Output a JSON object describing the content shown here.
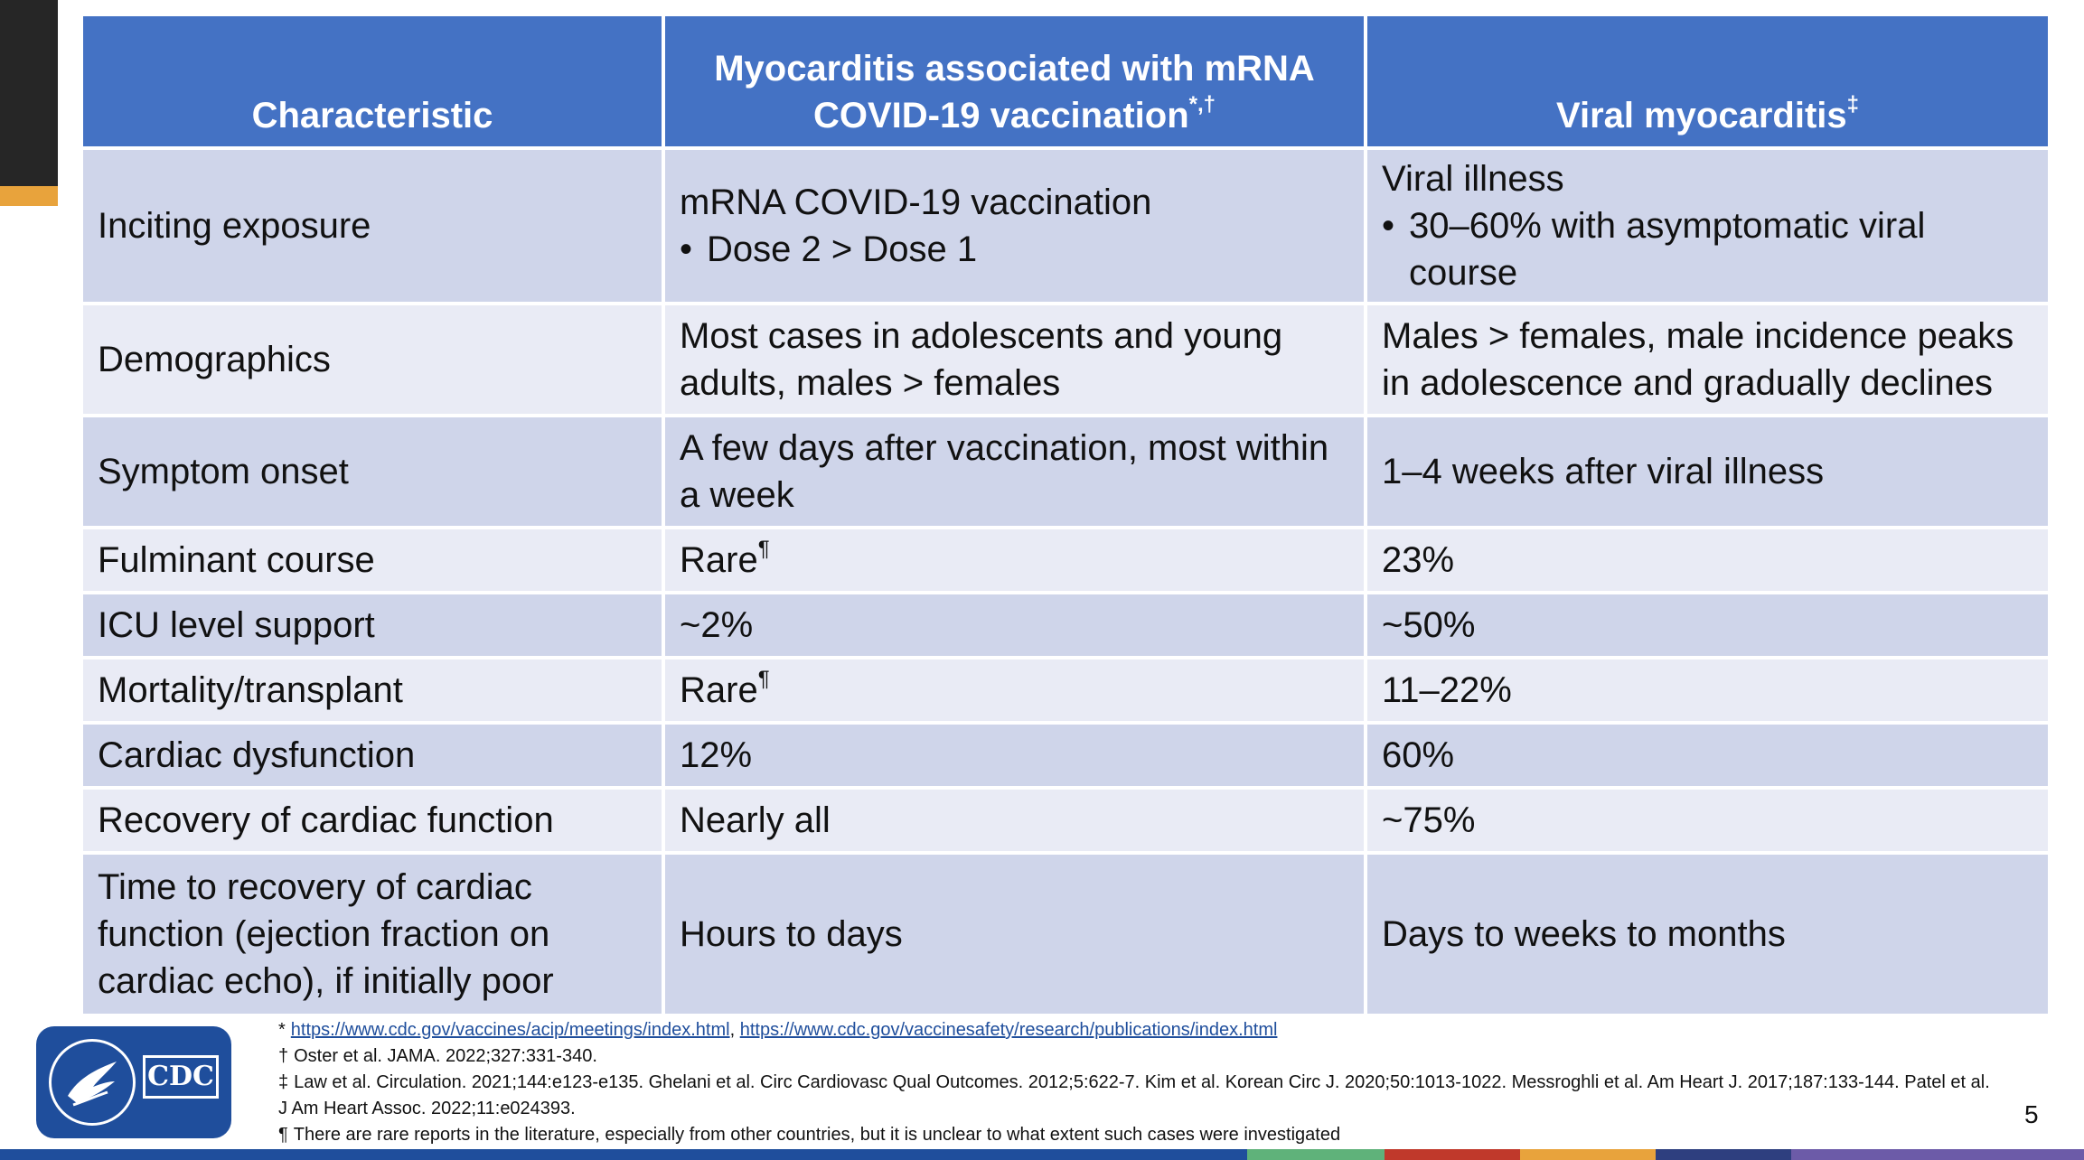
{
  "table": {
    "headers": {
      "characteristic": "Characteristic",
      "vaccine_line1": "Myocarditis associated with mRNA",
      "vaccine_line2": "COVID-19 vaccination",
      "vaccine_sup": "*,†",
      "viral": "Viral myocarditis",
      "viral_sup": "‡"
    },
    "rows": [
      {
        "characteristic": "Inciting exposure",
        "vaccine_main": "mRNA COVID-19 vaccination",
        "vaccine_bullet": "Dose 2 > Dose 1",
        "viral_main": "Viral illness",
        "viral_bullet": "30–60% with asymptomatic viral course"
      },
      {
        "characteristic": "Demographics",
        "vaccine": "Most cases in adolescents and young adults, males > females",
        "viral": "Males > females, male incidence peaks in adolescence and gradually declines"
      },
      {
        "characteristic": "Symptom onset",
        "vaccine": "A few days after vaccination, most within a week",
        "viral": "1–4 weeks after viral illness"
      },
      {
        "characteristic": "Fulminant course",
        "vaccine": "Rare",
        "vaccine_sup": "¶",
        "viral": "23%"
      },
      {
        "characteristic": "ICU level support",
        "vaccine": "~2%",
        "viral": "~50%"
      },
      {
        "characteristic": "Mortality/transplant",
        "vaccine": "Rare",
        "vaccine_sup": "¶",
        "viral": "11–22%"
      },
      {
        "characteristic": "Cardiac dysfunction",
        "vaccine": "12%",
        "viral": "60%"
      },
      {
        "characteristic": "Recovery of cardiac function",
        "vaccine": "Nearly all",
        "viral": "~75%"
      },
      {
        "characteristic": "Time to recovery of cardiac function (ejection fraction on cardiac echo), if initially poor",
        "vaccine": "Hours to days",
        "viral": "Days to weeks to months"
      }
    ]
  },
  "footnotes": {
    "fn1_mark": "*",
    "fn1_link1": "https://www.cdc.gov/vaccines/acip/meetings/index.html",
    "fn1_sep": ",",
    "fn1_link2": "https://www.cdc.gov/vaccinesafety/research/publications/index.html",
    "fn2_mark": "†",
    "fn2_text": "Oster et al. JAMA. 2022;327:331-340.",
    "fn3_mark": "‡",
    "fn3_text": "Law et al. Circulation. 2021;144:e123-e135. Ghelani et al. Circ Cardiovasc Qual Outcomes. 2012;5:622-7. Kim et al. Korean Circ J. 2020;50:1013-1022. Messroghli et al. Am Heart J. 2017;187:133-144. Patel et al. J Am Heart Assoc. 2022;11:e024393.",
    "fn4_mark": "¶",
    "fn4_text": "There are rare reports in the literature, especially from other countries, but it is unclear to what extent such cases were investigated"
  },
  "logo": {
    "text": "CDC"
  },
  "page_number": "5",
  "colors": {
    "header_blue": "#4472C4",
    "row_dark": "#CFD5EA",
    "row_light": "#E9EBF5",
    "accent_gold": "#E8A33C",
    "logo_blue": "#1F4E9C",
    "bottom_bar": [
      "#1F4E9C",
      "#5FB27A",
      "#C0392B",
      "#E8A33C",
      "#2E3F7F",
      "#6C5BA8"
    ]
  }
}
